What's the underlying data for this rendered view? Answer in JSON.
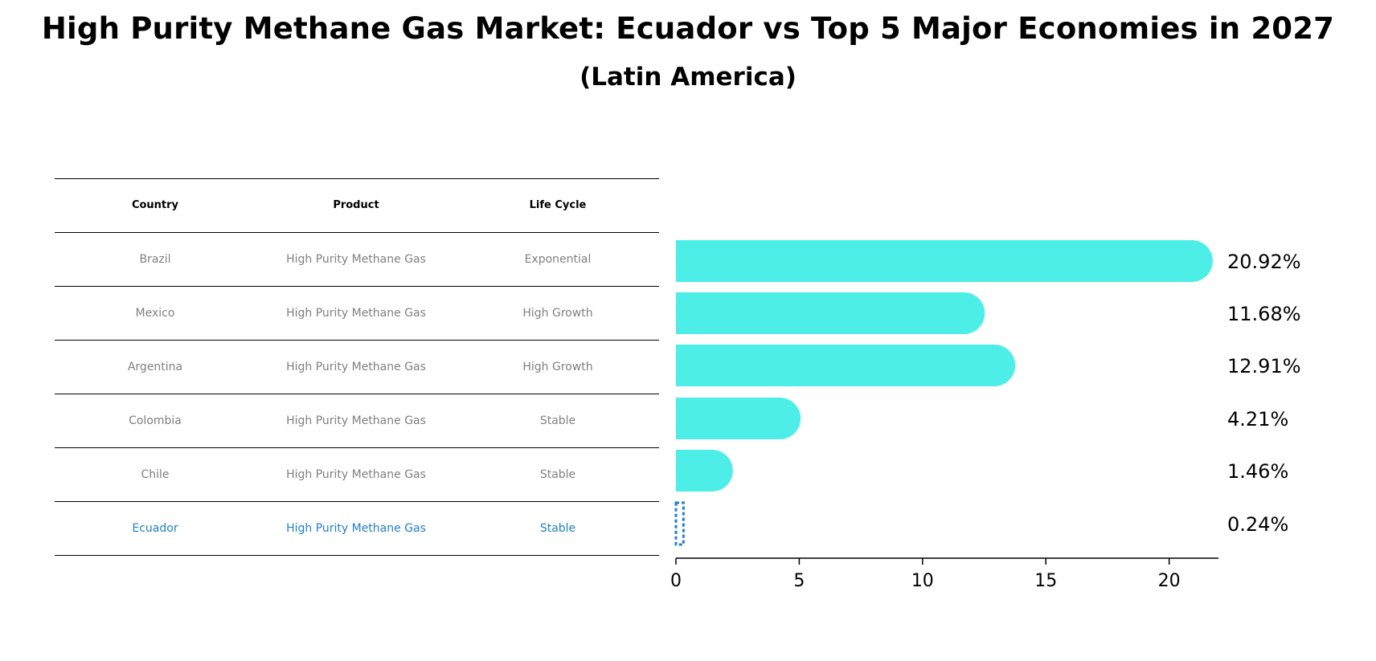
{
  "title": "High Purity Methane Gas Market: Ecuador vs Top 5 Major Economies in 2027",
  "subtitle": "(Latin America)",
  "table": {
    "headers": [
      "Country",
      "Product",
      "Life Cycle"
    ],
    "rows": [
      {
        "country": "Brazil",
        "product": "High Purity Methane Gas",
        "life_cycle": "Exponential"
      },
      {
        "country": "Mexico",
        "product": "High Purity Methane Gas",
        "life_cycle": "High Growth"
      },
      {
        "country": "Argentina",
        "product": "High Purity Methane Gas",
        "life_cycle": "High Growth"
      },
      {
        "country": "Colombia",
        "product": "High Purity Methane Gas",
        "life_cycle": "Stable"
      },
      {
        "country": "Chile",
        "product": "High Purity Methane Gas",
        "life_cycle": "Stable"
      },
      {
        "country": "Ecuador",
        "product": "High Purity Methane Gas",
        "life_cycle": "Stable"
      }
    ],
    "highlight_color": "#1f7fc8",
    "text_color": "#808080"
  },
  "chart_data": {
    "type": "bar",
    "orientation": "horizontal",
    "categories": [
      "Brazil",
      "Mexico",
      "Argentina",
      "Colombia",
      "Chile",
      "Ecuador"
    ],
    "values": [
      20.92,
      11.68,
      12.91,
      4.21,
      1.46,
      0.24
    ],
    "value_labels": [
      "20.92%",
      "11.68%",
      "12.91%",
      "4.21%",
      "1.46%",
      "0.24%"
    ],
    "xticks": [
      0,
      5,
      10,
      15,
      20
    ],
    "xlim": [
      0,
      22
    ],
    "bar_color": "#4deee8",
    "highlight_color": "#1f7fc8",
    "highlight_category": "Ecuador",
    "rounded_bar_ends": true
  }
}
